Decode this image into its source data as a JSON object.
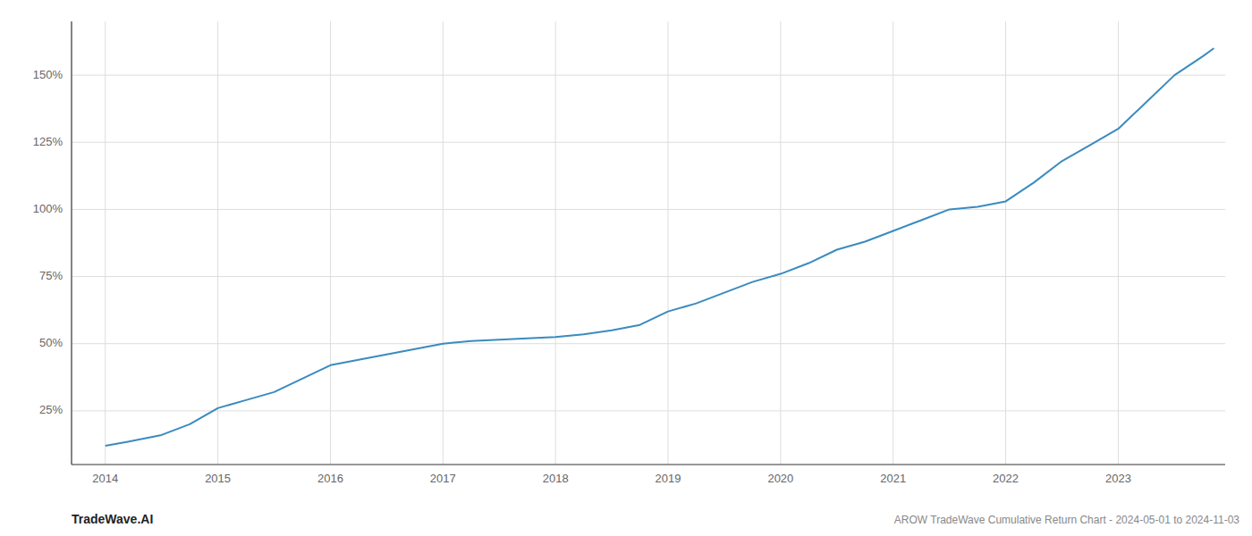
{
  "chart_data": {
    "type": "line",
    "x": [
      2014.0,
      2014.2,
      2014.5,
      2014.75,
      2015.0,
      2015.25,
      2015.5,
      2015.75,
      2016.0,
      2016.25,
      2016.5,
      2016.75,
      2017.0,
      2017.25,
      2017.5,
      2017.75,
      2018.0,
      2018.25,
      2018.5,
      2018.75,
      2019.0,
      2019.25,
      2019.5,
      2019.75,
      2020.0,
      2020.25,
      2020.5,
      2020.75,
      2021.0,
      2021.25,
      2021.5,
      2021.75,
      2022.0,
      2022.25,
      2022.5,
      2022.75,
      2023.0,
      2023.25,
      2023.5,
      2023.75,
      2023.85
    ],
    "values": [
      12,
      13.5,
      16,
      20,
      26,
      29,
      32,
      37,
      42,
      44,
      46,
      48,
      50,
      51,
      51.5,
      52,
      52.5,
      53.5,
      55,
      57,
      62,
      65,
      69,
      73,
      76,
      80,
      85,
      88,
      92,
      96,
      100,
      101,
      103,
      110,
      118,
      124,
      130,
      140,
      150,
      157,
      160
    ],
    "color": "#3a8bbf",
    "xlim": [
      2013.7,
      2023.95
    ],
    "ylim": [
      5,
      170
    ],
    "xticks": [
      2014,
      2015,
      2016,
      2017,
      2018,
      2019,
      2020,
      2021,
      2022,
      2023
    ],
    "yticks": [
      {
        "value": 25,
        "label": "25%"
      },
      {
        "value": 50,
        "label": "50%"
      },
      {
        "value": 75,
        "label": "75%"
      },
      {
        "value": 100,
        "label": "100%"
      },
      {
        "value": 125,
        "label": "125%"
      },
      {
        "value": 150,
        "label": "150%"
      }
    ],
    "grid": true,
    "annotations": [
      "TradeWave.AI",
      "AROW TradeWave Cumulative Return Chart - 2024-05-01 to 2024-11-03"
    ]
  }
}
